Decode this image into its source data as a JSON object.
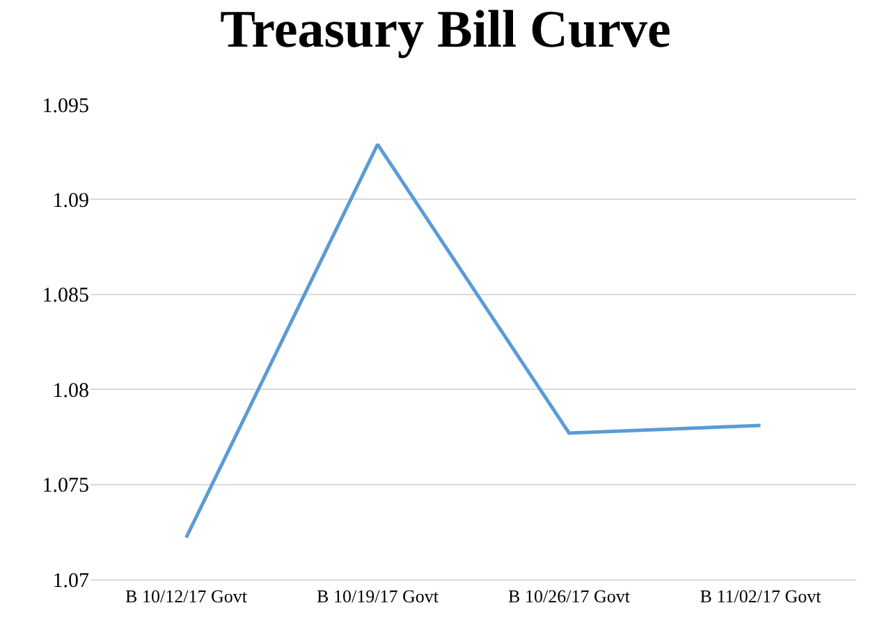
{
  "chart_data": {
    "type": "line",
    "title": "Treasury Bill Curve",
    "categories": [
      "B 10/12/17 Govt",
      "B 10/19/17 Govt",
      "B 10/26/17 Govt",
      "B 11/02/17 Govt"
    ],
    "series": [
      {
        "color": "#5b9bd5",
        "values": [
          1.0722,
          1.0929,
          1.0777,
          1.0781
        ]
      }
    ],
    "ylim": [
      1.07,
      1.095
    ],
    "yticks": [
      1.07,
      1.075,
      1.08,
      1.085,
      1.09,
      1.095
    ],
    "grid": "y",
    "legend": false,
    "marker": "none",
    "line_style": "solid"
  }
}
